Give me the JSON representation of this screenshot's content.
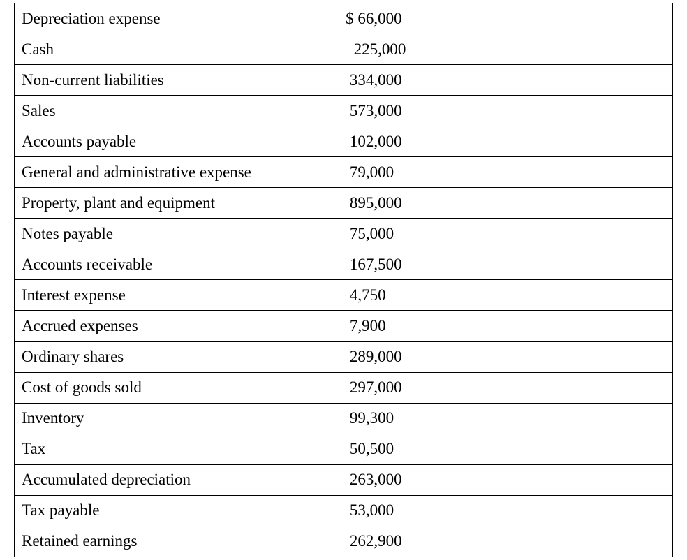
{
  "table": {
    "type": "table",
    "background_color": "#ffffff",
    "border_color": "#000000",
    "text_color": "#000000",
    "font_family": "Georgia, serif",
    "font_size_pt": 17,
    "column_widths_pct": [
      49,
      51
    ],
    "rows": [
      {
        "label": "Depreciation expense",
        "value": "$ 66,000"
      },
      {
        "label": "Cash",
        "value": "  225,000"
      },
      {
        "label": "Non-current liabilities",
        "value": " 334,000"
      },
      {
        "label": "Sales",
        "value": " 573,000"
      },
      {
        "label": "Accounts payable",
        "value": " 102,000"
      },
      {
        "label": "General and administrative expense",
        "value": " 79,000"
      },
      {
        "label": "Property, plant and equipment",
        "value": " 895,000"
      },
      {
        "label": "Notes payable",
        "value": " 75,000"
      },
      {
        "label": "Accounts receivable",
        "value": " 167,500"
      },
      {
        "label": "Interest expense",
        "value": " 4,750"
      },
      {
        "label": "Accrued expenses",
        "value": " 7,900"
      },
      {
        "label": "Ordinary shares",
        "value": " 289,000"
      },
      {
        "label": "Cost of goods sold",
        "value": " 297,000"
      },
      {
        "label": "Inventory",
        "value": " 99,300"
      },
      {
        "label": "Tax",
        "value": " 50,500"
      },
      {
        "label": "Accumulated depreciation",
        "value": " 263,000"
      },
      {
        "label": "Tax payable",
        "value": " 53,000"
      },
      {
        "label": "Retained earnings",
        "value": " 262,900"
      }
    ]
  }
}
